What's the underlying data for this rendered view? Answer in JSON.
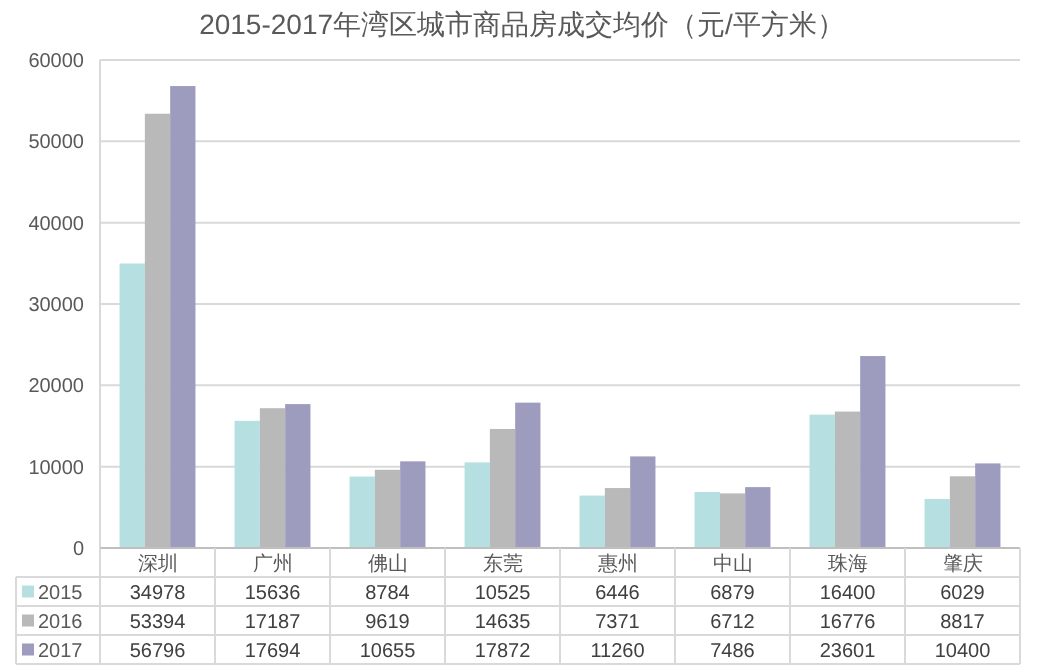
{
  "chart_data": {
    "type": "bar",
    "title": "2015-2017年湾区城市商品房成交均价（元/平方米）",
    "categories": [
      "深圳",
      "广州",
      "佛山",
      "东莞",
      "惠州",
      "中山",
      "珠海",
      "肇庆"
    ],
    "series": [
      {
        "name": "2015",
        "color": "#b5dfe0",
        "values": [
          34978,
          15636,
          8784,
          10525,
          6446,
          6879,
          16400,
          6029
        ]
      },
      {
        "name": "2016",
        "color": "#b9b9b9",
        "values": [
          53394,
          17187,
          9619,
          14635,
          7371,
          6712,
          16776,
          8817
        ]
      },
      {
        "name": "2017",
        "color": "#9d9cbf",
        "values": [
          56796,
          17694,
          10655,
          17872,
          11260,
          7486,
          23601,
          10400
        ]
      }
    ],
    "ylim": [
      0,
      60000
    ],
    "yticks": [
      0,
      10000,
      20000,
      30000,
      40000,
      50000,
      60000
    ],
    "grid": "y",
    "legend": "bottom",
    "data_labels": true
  }
}
